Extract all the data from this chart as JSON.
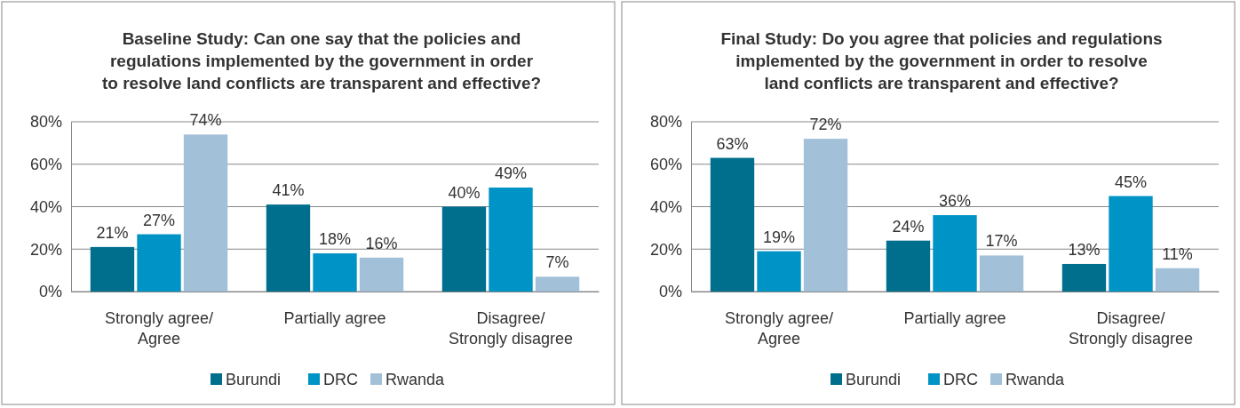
{
  "chart_data": [
    {
      "type": "bar",
      "title": "Baseline Study: Can one say that the policies and\nregulations implemented by the government  in order\nto resolve land conflicts are transparent and effective?",
      "categories": [
        "Strongly agree/\nAgree",
        "Partially agree",
        "Disagree/\nStrongly disagree"
      ],
      "series": [
        {
          "name": "Burundi",
          "color": "#006f8e",
          "values": [
            21,
            41,
            40
          ],
          "value_labels": [
            "21%",
            "41%",
            "40%"
          ]
        },
        {
          "name": "DRC",
          "color": "#0093c5",
          "values": [
            27,
            18,
            49
          ],
          "value_labels": [
            "27%",
            "18%",
            "49%"
          ]
        },
        {
          "name": "Rwanda",
          "color": "#a3c0d9",
          "values": [
            74,
            16,
            7
          ],
          "value_labels": [
            "74%",
            "16%",
            "7%"
          ]
        }
      ],
      "ylim": [
        0,
        80
      ],
      "yticks": [
        {
          "value": 0,
          "label": "0%"
        },
        {
          "value": 20,
          "label": "20%"
        },
        {
          "value": 40,
          "label": "40%"
        },
        {
          "value": 60,
          "label": "60%"
        },
        {
          "value": 80,
          "label": "80%"
        }
      ],
      "grid": "y",
      "legend": "bottom"
    },
    {
      "type": "bar",
      "title": "Final Study: Do you agree that policies and regulations\nimplemented by the government in order to resolve\nland conflicts are transparent  and effective?",
      "categories": [
        "Strongly agree/\nAgree",
        "Partially agree",
        "Disagree/\nStrongly disagree"
      ],
      "series": [
        {
          "name": "Burundi",
          "color": "#006f8e",
          "values": [
            63,
            24,
            13
          ],
          "value_labels": [
            "63%",
            "24%",
            "13%"
          ]
        },
        {
          "name": "DRC",
          "color": "#0093c5",
          "values": [
            19,
            36,
            45
          ],
          "value_labels": [
            "19%",
            "36%",
            "45%"
          ]
        },
        {
          "name": "Rwanda",
          "color": "#a3c0d9",
          "values": [
            72,
            17,
            11
          ],
          "value_labels": [
            "72%",
            "17%",
            "11%"
          ]
        }
      ],
      "ylim": [
        0,
        80
      ],
      "yticks": [
        {
          "value": 0,
          "label": "0%"
        },
        {
          "value": 20,
          "label": "20%"
        },
        {
          "value": 40,
          "label": "40%"
        },
        {
          "value": 60,
          "label": "60%"
        },
        {
          "value": 80,
          "label": "80%"
        }
      ],
      "grid": "y",
      "legend": "bottom"
    }
  ]
}
